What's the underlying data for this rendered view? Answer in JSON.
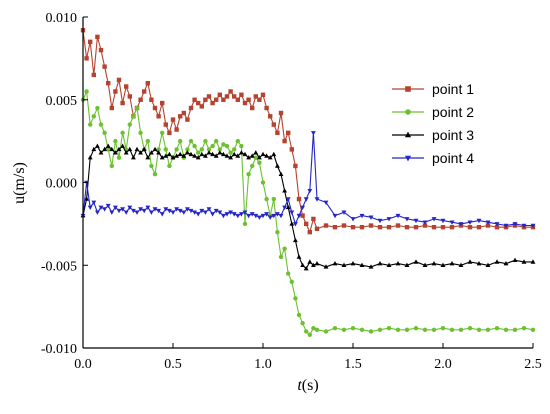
{
  "chart_data": {
    "type": "line",
    "xlabel_italic": "t",
    "xlabel_unit": "(s)",
    "ylabel": "u(m/s)",
    "xlim": [
      0,
      2.5
    ],
    "ylim": [
      -0.01,
      0.01
    ],
    "x_ticks": [
      0.0,
      0.5,
      1.0,
      1.5,
      2.0,
      2.5
    ],
    "x_tick_labels": [
      "0.0",
      "0.5",
      "1.0",
      "1.5",
      "2.0",
      "2.5"
    ],
    "y_ticks": [
      -0.01,
      -0.005,
      0.0,
      0.005,
      0.01
    ],
    "y_tick_labels": [
      "-0.010",
      "-0.005",
      "0.000",
      "0.005",
      "0.010"
    ],
    "grid": false,
    "legend_position": "top-right",
    "series": [
      {
        "name": "point 1",
        "color": "#b5432f",
        "marker": "square",
        "x": [
          0.0,
          0.02,
          0.04,
          0.06,
          0.08,
          0.1,
          0.12,
          0.14,
          0.16,
          0.18,
          0.2,
          0.22,
          0.24,
          0.26,
          0.28,
          0.3,
          0.32,
          0.34,
          0.36,
          0.38,
          0.4,
          0.42,
          0.44,
          0.46,
          0.48,
          0.5,
          0.52,
          0.54,
          0.56,
          0.58,
          0.6,
          0.62,
          0.64,
          0.66,
          0.68,
          0.7,
          0.72,
          0.74,
          0.76,
          0.78,
          0.8,
          0.82,
          0.84,
          0.86,
          0.88,
          0.9,
          0.92,
          0.94,
          0.96,
          0.98,
          1.0,
          1.02,
          1.04,
          1.06,
          1.08,
          1.1,
          1.12,
          1.14,
          1.16,
          1.18,
          1.2,
          1.22,
          1.24,
          1.26,
          1.28,
          1.3,
          1.35,
          1.4,
          1.45,
          1.5,
          1.55,
          1.6,
          1.65,
          1.7,
          1.75,
          1.8,
          1.85,
          1.9,
          1.95,
          2.0,
          2.05,
          2.1,
          2.15,
          2.2,
          2.25,
          2.3,
          2.35,
          2.4,
          2.45,
          2.5
        ],
        "y": [
          0.0092,
          0.0075,
          0.0085,
          0.0065,
          0.0088,
          0.008,
          0.007,
          0.006,
          0.0045,
          0.0055,
          0.0062,
          0.0048,
          0.0058,
          0.0052,
          0.004,
          0.0045,
          0.005,
          0.0055,
          0.006,
          0.005,
          0.0045,
          0.004,
          0.0048,
          0.0035,
          0.003,
          0.0038,
          0.0032,
          0.004,
          0.0042,
          0.0038,
          0.0045,
          0.005,
          0.0048,
          0.0046,
          0.005,
          0.0052,
          0.0048,
          0.005,
          0.0053,
          0.005,
          0.0052,
          0.0055,
          0.0052,
          0.005,
          0.0053,
          0.0048,
          0.005,
          0.0045,
          0.0052,
          0.005,
          0.0053,
          0.0045,
          0.004,
          0.0035,
          0.003,
          0.0042,
          0.0025,
          0.003,
          0.002,
          0.001,
          -0.001,
          -0.002,
          -0.0025,
          -0.003,
          -0.0022,
          -0.0028,
          -0.0026,
          -0.0027,
          -0.0026,
          -0.0027,
          -0.0027,
          -0.0026,
          -0.0027,
          -0.0027,
          -0.0026,
          -0.0027,
          -0.0027,
          -0.0026,
          -0.0027,
          -0.0027,
          -0.0027,
          -0.0026,
          -0.0027,
          -0.0027,
          -0.0026,
          -0.0027,
          -0.0027,
          -0.0026,
          -0.0027,
          -0.0027
        ]
      },
      {
        "name": "point 2",
        "color": "#6cc130",
        "marker": "circle",
        "x": [
          0.0,
          0.02,
          0.04,
          0.06,
          0.08,
          0.1,
          0.12,
          0.14,
          0.16,
          0.18,
          0.2,
          0.22,
          0.24,
          0.26,
          0.28,
          0.3,
          0.32,
          0.34,
          0.36,
          0.38,
          0.4,
          0.42,
          0.44,
          0.46,
          0.48,
          0.5,
          0.52,
          0.54,
          0.56,
          0.58,
          0.6,
          0.62,
          0.64,
          0.66,
          0.68,
          0.7,
          0.72,
          0.74,
          0.76,
          0.78,
          0.8,
          0.82,
          0.84,
          0.86,
          0.88,
          0.9,
          0.92,
          0.94,
          0.96,
          0.98,
          1.0,
          1.02,
          1.04,
          1.06,
          1.08,
          1.1,
          1.12,
          1.14,
          1.16,
          1.18,
          1.2,
          1.22,
          1.24,
          1.26,
          1.28,
          1.3,
          1.35,
          1.4,
          1.45,
          1.5,
          1.55,
          1.6,
          1.65,
          1.7,
          1.75,
          1.8,
          1.85,
          1.9,
          1.95,
          2.0,
          2.05,
          2.1,
          2.15,
          2.2,
          2.25,
          2.3,
          2.35,
          2.4,
          2.45,
          2.5
        ],
        "y": [
          0.005,
          0.0055,
          0.0035,
          0.004,
          0.0045,
          0.0035,
          0.003,
          0.002,
          0.001,
          0.0025,
          0.0015,
          0.003,
          0.002,
          0.0035,
          0.004,
          0.0045,
          0.003,
          0.002,
          0.0025,
          0.001,
          0.0005,
          0.002,
          0.003,
          0.002,
          0.001,
          0.0015,
          0.002,
          0.0025,
          0.0015,
          0.002,
          0.0025,
          0.0022,
          0.0018,
          0.002,
          0.0025,
          0.002,
          0.0022,
          0.0025,
          0.002,
          0.0023,
          0.0022,
          0.0018,
          0.002,
          0.0025,
          0.0022,
          -0.0025,
          0.0005,
          0.001,
          0.0015,
          0.0012,
          0.0,
          -0.001,
          -0.002,
          -0.001,
          -0.003,
          -0.0045,
          -0.004,
          -0.0055,
          -0.006,
          -0.007,
          -0.008,
          -0.0085,
          -0.009,
          -0.0092,
          -0.0088,
          -0.0089,
          -0.009,
          -0.0088,
          -0.0089,
          -0.0088,
          -0.0089,
          -0.009,
          -0.0089,
          -0.0088,
          -0.0089,
          -0.0089,
          -0.0088,
          -0.0089,
          -0.0089,
          -0.0088,
          -0.0089,
          -0.0089,
          -0.0088,
          -0.0089,
          -0.0089,
          -0.0088,
          -0.0089,
          -0.0089,
          -0.0088,
          -0.0089
        ]
      },
      {
        "name": "point 3",
        "color": "#000000",
        "marker": "triangle-up",
        "x": [
          0.0,
          0.02,
          0.04,
          0.06,
          0.08,
          0.1,
          0.12,
          0.14,
          0.16,
          0.18,
          0.2,
          0.22,
          0.24,
          0.26,
          0.28,
          0.3,
          0.32,
          0.34,
          0.36,
          0.38,
          0.4,
          0.42,
          0.44,
          0.46,
          0.48,
          0.5,
          0.52,
          0.54,
          0.56,
          0.58,
          0.6,
          0.62,
          0.64,
          0.66,
          0.68,
          0.7,
          0.72,
          0.74,
          0.76,
          0.78,
          0.8,
          0.82,
          0.84,
          0.86,
          0.88,
          0.9,
          0.92,
          0.94,
          0.96,
          0.98,
          1.0,
          1.02,
          1.04,
          1.06,
          1.08,
          1.1,
          1.12,
          1.14,
          1.16,
          1.18,
          1.2,
          1.22,
          1.24,
          1.26,
          1.28,
          1.3,
          1.35,
          1.4,
          1.45,
          1.5,
          1.55,
          1.6,
          1.65,
          1.7,
          1.75,
          1.8,
          1.85,
          1.9,
          1.95,
          2.0,
          2.05,
          2.1,
          2.15,
          2.2,
          2.25,
          2.3,
          2.35,
          2.4,
          2.45,
          2.5
        ],
        "y": [
          -0.002,
          -0.001,
          0.0015,
          0.002,
          0.0022,
          0.0018,
          0.002,
          0.0022,
          0.002,
          0.0018,
          0.002,
          0.0022,
          0.0018,
          0.002,
          0.0015,
          0.002,
          0.0018,
          0.002,
          0.0015,
          0.0018,
          0.002,
          0.0018,
          0.0015,
          0.0016,
          0.0017,
          0.0015,
          0.0016,
          0.0017,
          0.0016,
          0.0018,
          0.0017,
          0.0016,
          0.0015,
          0.0017,
          0.0016,
          0.0018,
          0.0017,
          0.0016,
          0.0018,
          0.0017,
          0.0016,
          0.0015,
          0.0017,
          0.0016,
          0.0018,
          0.0017,
          0.0015,
          0.0016,
          0.0018,
          0.0015,
          0.0017,
          0.0016,
          0.0015,
          0.0017,
          0.001,
          0.0005,
          -0.0005,
          -0.0015,
          -0.0025,
          -0.0035,
          -0.0045,
          -0.005,
          -0.0052,
          -0.0048,
          -0.005,
          -0.0049,
          -0.0051,
          -0.0049,
          -0.005,
          -0.0049,
          -0.005,
          -0.0051,
          -0.0049,
          -0.005,
          -0.0049,
          -0.005,
          -0.0048,
          -0.005,
          -0.0049,
          -0.005,
          -0.0049,
          -0.005,
          -0.0048,
          -0.0049,
          -0.005,
          -0.0048,
          -0.0049,
          -0.0047,
          -0.0048,
          -0.0048
        ]
      },
      {
        "name": "point 4",
        "color": "#2525c8",
        "marker": "triangle-down",
        "x": [
          0.0,
          0.02,
          0.04,
          0.06,
          0.08,
          0.1,
          0.12,
          0.14,
          0.16,
          0.18,
          0.2,
          0.22,
          0.24,
          0.26,
          0.28,
          0.3,
          0.32,
          0.34,
          0.36,
          0.38,
          0.4,
          0.42,
          0.44,
          0.46,
          0.48,
          0.5,
          0.52,
          0.54,
          0.56,
          0.58,
          0.6,
          0.62,
          0.64,
          0.66,
          0.68,
          0.7,
          0.72,
          0.74,
          0.76,
          0.78,
          0.8,
          0.82,
          0.84,
          0.86,
          0.88,
          0.9,
          0.92,
          0.94,
          0.96,
          0.98,
          1.0,
          1.02,
          1.04,
          1.06,
          1.08,
          1.1,
          1.12,
          1.14,
          1.16,
          1.18,
          1.2,
          1.22,
          1.24,
          1.26,
          1.28,
          1.3,
          1.35,
          1.4,
          1.45,
          1.5,
          1.55,
          1.6,
          1.65,
          1.7,
          1.75,
          1.8,
          1.85,
          1.9,
          1.95,
          2.0,
          2.05,
          2.1,
          2.15,
          2.2,
          2.25,
          2.3,
          2.35,
          2.4,
          2.45,
          2.5
        ],
        "y": [
          -0.002,
          0.0,
          -0.0015,
          -0.0012,
          -0.0018,
          -0.0015,
          -0.0016,
          -0.0014,
          -0.0018,
          -0.0015,
          -0.0017,
          -0.0016,
          -0.0018,
          -0.0015,
          -0.0017,
          -0.0018,
          -0.0016,
          -0.0017,
          -0.0015,
          -0.0018,
          -0.0016,
          -0.0017,
          -0.0019,
          -0.0016,
          -0.0017,
          -0.0018,
          -0.0016,
          -0.0017,
          -0.0018,
          -0.0016,
          -0.0017,
          -0.0018,
          -0.0019,
          -0.0017,
          -0.0018,
          -0.0016,
          -0.0019,
          -0.0017,
          -0.0018,
          -0.002,
          -0.0019,
          -0.0018,
          -0.0019,
          -0.002,
          -0.0019,
          -0.0018,
          -0.002,
          -0.0019,
          -0.002,
          -0.0021,
          -0.002,
          -0.0019,
          -0.0021,
          -0.002,
          -0.0019,
          -0.002,
          -0.0015,
          -0.001,
          -0.0018,
          -0.0025,
          -0.002,
          -0.0015,
          -0.001,
          -0.0005,
          0.003,
          -0.001,
          -0.0012,
          -0.002,
          -0.0018,
          -0.0022,
          -0.002,
          -0.0021,
          -0.0023,
          -0.0022,
          -0.002,
          -0.0022,
          -0.0023,
          -0.0024,
          -0.0022,
          -0.0023,
          -0.0024,
          -0.0025,
          -0.0024,
          -0.0023,
          -0.0024,
          -0.0025,
          -0.0026,
          -0.0025,
          -0.0026,
          -0.0026
        ]
      }
    ]
  }
}
